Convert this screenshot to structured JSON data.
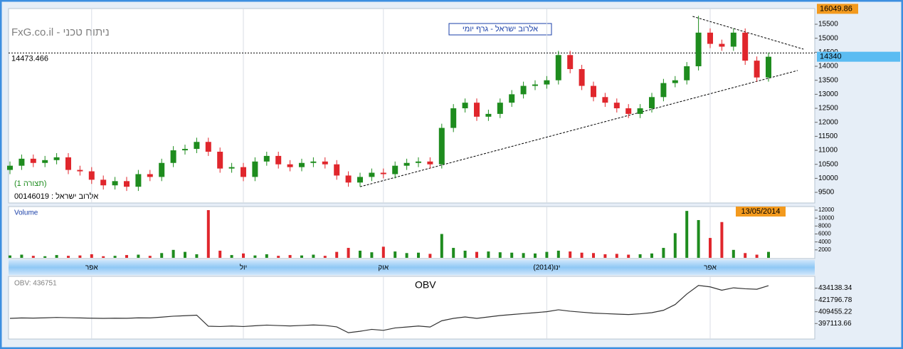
{
  "header": {
    "site": "FxG.co.il - ניתוח טכני",
    "chart_title": "אלרוב ישראל - גרף יומי",
    "pattern": "(תצורה 1)",
    "security": "00146019 : אלרוב ישראל",
    "date": "13/05/2014"
  },
  "chart_data": [
    {
      "type": "candlestick",
      "categories": [
        null,
        null,
        null,
        null,
        null,
        null,
        null,
        "אפר",
        null,
        null,
        null,
        null,
        null,
        null,
        null,
        null,
        null,
        null,
        null,
        null,
        "יול",
        null,
        null,
        null,
        null,
        null,
        null,
        null,
        null,
        null,
        null,
        null,
        "אוק",
        null,
        null,
        null,
        null,
        null,
        null,
        null,
        null,
        null,
        null,
        null,
        null,
        null,
        "ינו(2014)",
        null,
        null,
        null,
        null,
        null,
        null,
        null,
        null,
        null,
        null,
        null,
        null,
        null,
        "אפר",
        null,
        null,
        null,
        null,
        null
      ],
      "open": [
        10300,
        10450,
        10700,
        10550,
        10650,
        10750,
        10300,
        10250,
        9950,
        9750,
        9900,
        9700,
        10150,
        10050,
        10550,
        11000,
        11050,
        11300,
        10950,
        10350,
        10400,
        10050,
        10600,
        10800,
        10500,
        10400,
        10550,
        10600,
        10500,
        10100,
        9850,
        10050,
        10200,
        10150,
        10450,
        10550,
        10600,
        10500,
        11800,
        12500,
        12700,
        12200,
        12300,
        12700,
        13000,
        13300,
        13350,
        13500,
        14400,
        13900,
        13300,
        12900,
        12700,
        12500,
        12300,
        12500,
        12900,
        13400,
        13500,
        14000,
        15200,
        14800,
        14700,
        15200,
        14200,
        13600
      ],
      "high": [
        10600,
        10850,
        10850,
        10800,
        10900,
        10900,
        10450,
        10400,
        10100,
        10050,
        10050,
        10300,
        10300,
        10700,
        11150,
        11200,
        11450,
        11450,
        11100,
        10550,
        10550,
        10750,
        10950,
        10950,
        10650,
        10700,
        10750,
        10750,
        10650,
        10250,
        10200,
        10350,
        10350,
        10600,
        10700,
        10750,
        10750,
        11950,
        12650,
        12850,
        12850,
        12450,
        12850,
        13150,
        13450,
        13500,
        13650,
        14550,
        14550,
        14050,
        13450,
        13050,
        12850,
        12650,
        12650,
        13050,
        13550,
        13650,
        14150,
        15800,
        15350,
        14950,
        15350,
        15350,
        14350,
        14490
      ],
      "low": [
        10150,
        10300,
        10400,
        10400,
        10500,
        10150,
        10100,
        9800,
        9600,
        9600,
        9550,
        9550,
        9900,
        9900,
        10400,
        10850,
        10900,
        10800,
        10200,
        10200,
        9900,
        9900,
        10450,
        10350,
        10250,
        10250,
        10400,
        10350,
        9950,
        9700,
        9700,
        9900,
        10000,
        10000,
        10300,
        10400,
        10350,
        10350,
        11650,
        12350,
        12050,
        12050,
        12150,
        12550,
        12850,
        13150,
        13200,
        13350,
        13750,
        13150,
        12750,
        12550,
        12350,
        12150,
        12150,
        12350,
        12750,
        13250,
        13350,
        13850,
        14650,
        14550,
        14550,
        14050,
        13450,
        13450
      ],
      "close": [
        10450,
        10700,
        10550,
        10650,
        10750,
        10300,
        10250,
        9950,
        9750,
        9900,
        9700,
        10150,
        10050,
        10550,
        11000,
        11050,
        11300,
        10950,
        10350,
        10400,
        10050,
        10600,
        10800,
        10500,
        10400,
        10550,
        10600,
        10500,
        10100,
        9850,
        10050,
        10200,
        10150,
        10450,
        10550,
        10600,
        10500,
        11800,
        12500,
        12700,
        12200,
        12300,
        12700,
        13000,
        13300,
        13350,
        13500,
        14400,
        13900,
        13300,
        12900,
        12700,
        12500,
        12300,
        12500,
        12900,
        13400,
        13500,
        14000,
        15200,
        14800,
        14700,
        15200,
        14200,
        13600,
        14340
      ],
      "up_color": "#1e8c1e",
      "down_color": "#e0262c",
      "ylim": [
        9120,
        16060
      ],
      "yticks": [
        9500,
        10000,
        10500,
        11000,
        11500,
        12000,
        12500,
        13000,
        13500,
        14000,
        14500,
        15000,
        15500
      ],
      "hline": 14473.466,
      "max_label": 16049.86,
      "last_label": 14340,
      "trendlines": [
        {
          "x": [
            30,
            67.5
          ],
          "values": [
            9700,
            13850
          ]
        },
        {
          "x": [
            58.5,
            68
          ],
          "values": [
            15780,
            14610
          ]
        }
      ]
    },
    {
      "type": "bar",
      "title": "Volume",
      "values": [
        600,
        800,
        500,
        400,
        700,
        500,
        600,
        900,
        400,
        500,
        700,
        800,
        500,
        1200,
        2000,
        1500,
        900,
        12000,
        1800,
        700,
        1100,
        600,
        900,
        500,
        700,
        600,
        800,
        500,
        1500,
        2500,
        1800,
        1400,
        2800,
        1600,
        1200,
        1300,
        1000,
        6000,
        2500,
        1800,
        1500,
        1600,
        1400,
        1300,
        1200,
        1100,
        1500,
        1800,
        1600,
        1300,
        1200,
        900,
        1000,
        800,
        900,
        1100,
        2500,
        6200,
        11800,
        9500,
        5000,
        9000,
        2000,
        1200,
        800,
        1500
      ],
      "ylim": [
        0,
        12900
      ],
      "yticks": [
        2000,
        4000,
        6000,
        8000,
        10000,
        12000
      ]
    },
    {
      "type": "line",
      "title": "OBV",
      "name": "OBV: 436751",
      "color": "#333333",
      "values": [
        402500,
        403000,
        402800,
        403100,
        403500,
        403200,
        403000,
        402700,
        402500,
        402700,
        402600,
        403100,
        403000,
        403800,
        404800,
        405300,
        405900,
        394300,
        394000,
        394500,
        394000,
        394800,
        395500,
        395000,
        394600,
        395100,
        395600,
        395100,
        393600,
        387500,
        389000,
        391000,
        390000,
        392500,
        393500,
        394500,
        393500,
        400000,
        402500,
        404000,
        402500,
        404000,
        405500,
        406500,
        407500,
        408500,
        409500,
        411500,
        410000,
        409000,
        408000,
        407500,
        407000,
        406500,
        407300,
        408500,
        411000,
        417000,
        428000,
        437000,
        435500,
        432000,
        434500,
        433500,
        433000,
        436751
      ],
      "ylim": [
        380900,
        446500
      ],
      "yticks": [
        397113.66,
        409455.22,
        421796.78,
        434138.34
      ]
    }
  ]
}
